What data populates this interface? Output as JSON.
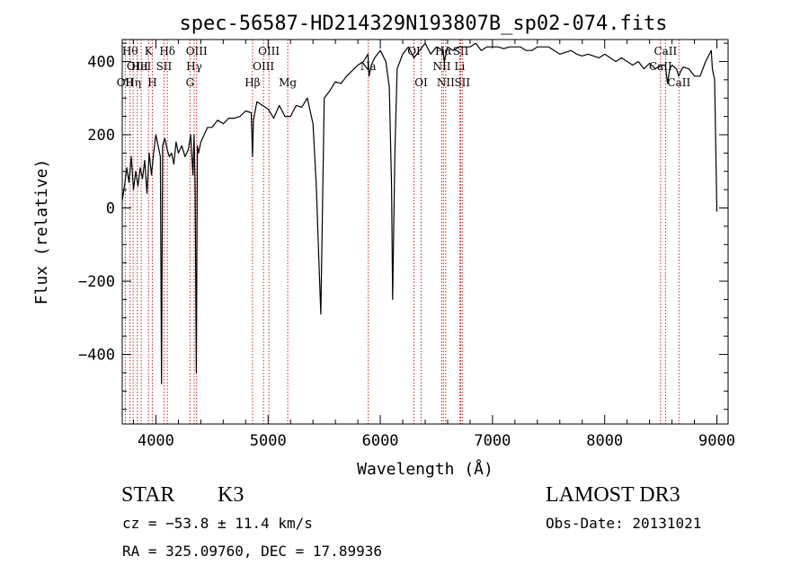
{
  "chart_data": {
    "type": "line",
    "title": "spec-56587-HD214329N193807B_sp02-074.fits",
    "xlabel": "Wavelength (Å)",
    "ylabel": "Flux (relative)",
    "xlim": [
      3700,
      9100
    ],
    "ylim": [
      -590,
      460
    ],
    "xticks": [
      4000,
      5000,
      6000,
      7000,
      8000,
      9000
    ],
    "yticks": [
      -400,
      -200,
      0,
      200,
      400
    ],
    "grid": false,
    "series": [
      {
        "x": [
          3700,
          3720,
          3740,
          3760,
          3780,
          3800,
          3820,
          3840,
          3860,
          3880,
          3900,
          3920,
          3940,
          3960,
          3980,
          4000,
          4020,
          4040,
          4050,
          4060,
          4080,
          4100,
          4120,
          4140,
          4160,
          4180,
          4200,
          4230,
          4260,
          4290,
          4310,
          4330,
          4340,
          4350,
          4360,
          4370,
          4380,
          4400,
          4430,
          4460,
          4500,
          4550,
          4600,
          4650,
          4700,
          4750,
          4800,
          4850,
          4861,
          4870,
          4900,
          4950,
          5000,
          5050,
          5100,
          5150,
          5200,
          5250,
          5300,
          5350,
          5400,
          5430,
          5450,
          5470,
          5500,
          5550,
          5600,
          5650,
          5700,
          5750,
          5800,
          5850,
          5890,
          5900,
          5920,
          5950,
          6000,
          6050,
          6080,
          6100,
          6110,
          6130,
          6150,
          6200,
          6250,
          6300,
          6350,
          6400,
          6450,
          6500,
          6560,
          6570,
          6600,
          6650,
          6700,
          6750,
          6800,
          6850,
          6900,
          6950,
          7000,
          7050,
          7100,
          7150,
          7200,
          7250,
          7300,
          7350,
          7400,
          7450,
          7500,
          7550,
          7600,
          7650,
          7700,
          7750,
          7800,
          7850,
          7900,
          7950,
          8000,
          8050,
          8100,
          8150,
          8200,
          8250,
          8300,
          8350,
          8400,
          8450,
          8500,
          8540,
          8560,
          8580,
          8600,
          8640,
          8660,
          8680,
          8700,
          8750,
          8800,
          8850,
          8900,
          8950,
          8960,
          8980,
          9000
        ],
        "values": [
          20,
          60,
          110,
          70,
          140,
          50,
          100,
          60,
          110,
          80,
          130,
          40,
          150,
          90,
          150,
          200,
          170,
          140,
          -480,
          170,
          190,
          160,
          140,
          150,
          120,
          180,
          150,
          170,
          140,
          160,
          200,
          90,
          200,
          60,
          -450,
          170,
          150,
          180,
          200,
          220,
          220,
          240,
          230,
          245,
          245,
          250,
          265,
          260,
          140,
          240,
          290,
          280,
          270,
          245,
          280,
          250,
          250,
          280,
          275,
          300,
          230,
          60,
          -120,
          -290,
          300,
          320,
          345,
          340,
          360,
          375,
          390,
          400,
          420,
          360,
          390,
          410,
          430,
          400,
          330,
          60,
          -250,
          150,
          380,
          420,
          440,
          410,
          430,
          450,
          420,
          440,
          430,
          400,
          440,
          430,
          440,
          440,
          440,
          450,
          430,
          440,
          440,
          440,
          435,
          440,
          440,
          440,
          430,
          430,
          440,
          440,
          440,
          430,
          420,
          425,
          430,
          420,
          415,
          420,
          415,
          410,
          420,
          410,
          400,
          410,
          400,
          390,
          400,
          380,
          395,
          380,
          390,
          390,
          340,
          380,
          390,
          380,
          360,
          375,
          385,
          380,
          360,
          360,
          400,
          430,
          380,
          350,
          -10
        ]
      }
    ],
    "lines": [
      {
        "x": 3727,
        "label": "OII",
        "row": 2
      },
      {
        "x": 3770,
        "label": "Hθ",
        "row": 0
      },
      {
        "x": 3797,
        "label": "Hη",
        "row": 2
      },
      {
        "x": 3835,
        "label": "OIII",
        "row": 1
      },
      {
        "x": 3869,
        "label": "HeI",
        "row": 1
      },
      {
        "x": 3934,
        "label": "K",
        "row": 0
      },
      {
        "x": 3968,
        "label": "H",
        "row": 2
      },
      {
        "x": 4072,
        "label": "SII",
        "row": 1
      },
      {
        "x": 4102,
        "label": "Hδ",
        "row": 0
      },
      {
        "x": 4304,
        "label": "G",
        "row": 2
      },
      {
        "x": 4341,
        "label": "Hγ",
        "row": 1
      },
      {
        "x": 4363,
        "label": "OIII",
        "row": 0
      },
      {
        "x": 4861,
        "label": "Hβ",
        "row": 2
      },
      {
        "x": 4959,
        "label": "OIII",
        "row": 1
      },
      {
        "x": 5007,
        "label": "OIII",
        "row": 0
      },
      {
        "x": 5175,
        "label": "Mg",
        "row": 2
      },
      {
        "x": 5893,
        "label": "Na",
        "row": 1
      },
      {
        "x": 6300,
        "label": "OI",
        "row": 0
      },
      {
        "x": 6364,
        "label": "OI",
        "row": 2
      },
      {
        "x": 6548,
        "label": "NII",
        "row": 1
      },
      {
        "x": 6563,
        "label": "Hα",
        "row": 0
      },
      {
        "x": 6583,
        "label": "NII",
        "row": 2
      },
      {
        "x": 6708,
        "label": "Li",
        "row": 1
      },
      {
        "x": 6717,
        "label": "SII",
        "row": 0
      },
      {
        "x": 6731,
        "label": "SII",
        "row": 2
      },
      {
        "x": 8498,
        "label": "CaII",
        "row": 1
      },
      {
        "x": 8542,
        "label": "CaII",
        "row": 0
      },
      {
        "x": 8662,
        "label": "CaII",
        "row": 2
      }
    ]
  },
  "info": {
    "class": "STAR",
    "subclass": "K3",
    "survey": "LAMOST DR3",
    "cz": "cz = −53.8 ± 11.4 km/s",
    "obs_date": "Obs-Date: 20131021",
    "coords": "RA = 325.09760, DEC =  17.89936"
  }
}
